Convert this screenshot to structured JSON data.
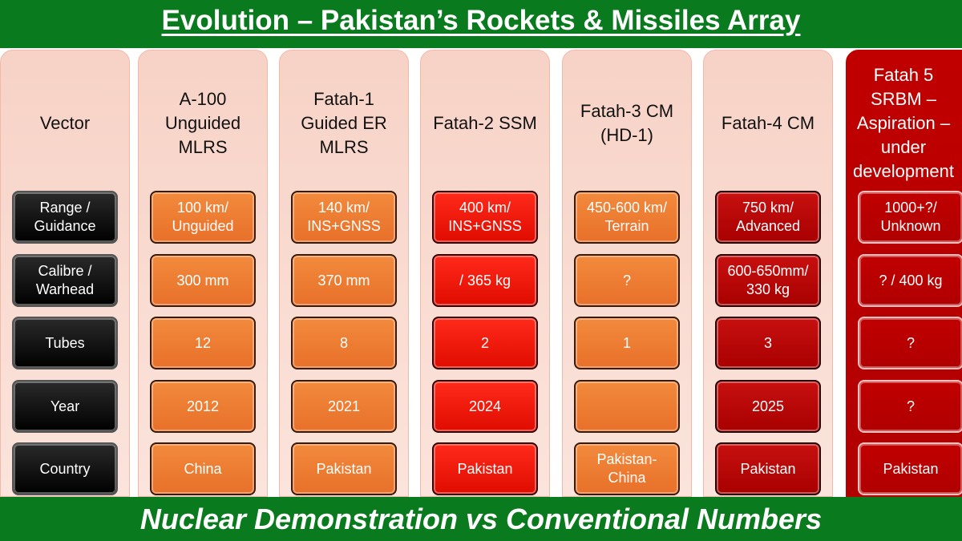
{
  "header": {
    "title": "Evolution – Pakistan’s Rockets & Missiles Array"
  },
  "table": {
    "row_header": "Vector",
    "row_labels": [
      "Range /\nGuidance",
      "Calibre /\nWarhead",
      "Tubes",
      "Year",
      "Country"
    ],
    "columns": [
      {
        "header": "A-100\nUnguided\nMLRS",
        "cells": [
          "100 km/\nUnguided",
          "300 mm",
          "12",
          "2012",
          "China"
        ]
      },
      {
        "header": "Fatah-1\nGuided ER\nMLRS",
        "cells": [
          "140 km/\nINS+GNSS",
          "370 mm",
          "8",
          "2021",
          "Pakistan"
        ]
      },
      {
        "header": "Fatah-2 SSM",
        "cells": [
          "400 km/\nINS+GNSS",
          "/ 365 kg",
          "2",
          "2024",
          "Pakistan"
        ]
      },
      {
        "header": "Fatah-3 CM\n(HD-1)",
        "cells": [
          "450-600 km/\nTerrain",
          "?",
          "1",
          null,
          "Pakistan-\nChina"
        ]
      },
      {
        "header": "Fatah-4 CM",
        "cells": [
          "750 km/\nAdvanced",
          "600-650mm/\n330 kg",
          "3",
          "2025",
          "Pakistan"
        ]
      },
      {
        "header": "Fatah 5\nSRBM –\nAspiration –\nunder\ndevelopment",
        "cells": [
          "1000+?/\nUnknown",
          "? / 400 kg",
          "?",
          "?",
          "Pakistan"
        ]
      }
    ]
  },
  "footer": {
    "text": "Nuclear Demonstration vs Conventional Numbers"
  }
}
